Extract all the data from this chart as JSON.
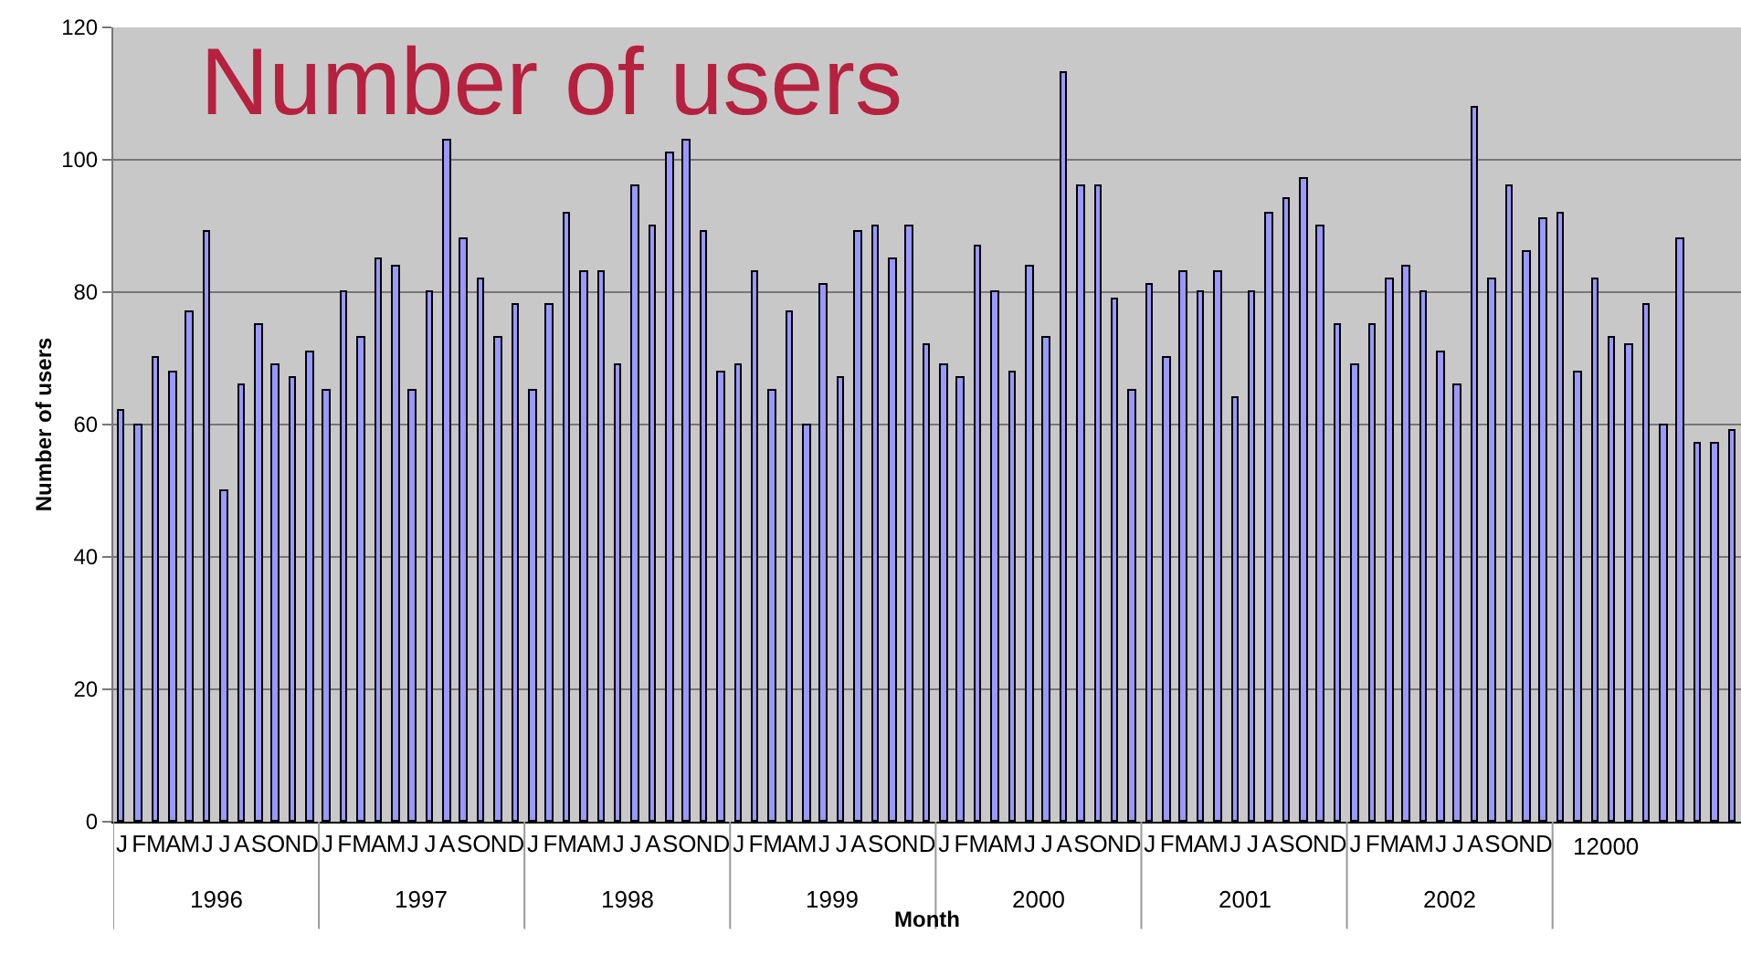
{
  "chart_data": {
    "type": "bar",
    "title": "Number of users",
    "xlabel": "Month",
    "ylabel": "Number of users",
    "categories": [
      "J",
      "F",
      "M",
      "A",
      "M",
      "J",
      "J",
      "A",
      "S",
      "O",
      "N",
      "D",
      "J",
      "F",
      "M",
      "A",
      "M",
      "J",
      "J",
      "A",
      "S",
      "O",
      "N",
      "D",
      "J",
      "F",
      "M",
      "A",
      "M",
      "J",
      "J",
      "A",
      "S",
      "O",
      "N",
      "D",
      "J",
      "F",
      "M",
      "A",
      "M",
      "J",
      "J",
      "A",
      "S",
      "O",
      "N",
      "D",
      "J",
      "F",
      "M",
      "A",
      "M",
      "J",
      "J",
      "A",
      "S",
      "O",
      "N",
      "D",
      "J",
      "F",
      "M",
      "A",
      "M",
      "J",
      "J",
      "A",
      "S",
      "O",
      "N",
      "D",
      "J",
      "F",
      "M",
      "A",
      "M",
      "J",
      "J",
      "A",
      "S",
      "O",
      "N",
      "D",
      null,
      null,
      null,
      null,
      null,
      null,
      null,
      null,
      null,
      null,
      null
    ],
    "values": [
      62,
      60,
      70,
      68,
      77,
      89,
      50,
      66,
      75,
      69,
      67,
      71,
      65,
      80,
      73,
      85,
      84,
      65,
      80,
      103,
      88,
      82,
      73,
      78,
      65,
      78,
      92,
      83,
      83,
      69,
      96,
      90,
      101,
      103,
      89,
      68,
      69,
      83,
      65,
      77,
      60,
      81,
      67,
      89,
      90,
      85,
      90,
      72,
      69,
      67,
      87,
      80,
      68,
      84,
      73,
      113,
      96,
      96,
      79,
      65,
      81,
      70,
      83,
      80,
      83,
      64,
      80,
      92,
      94,
      97,
      90,
      75,
      69,
      75,
      82,
      84,
      80,
      71,
      66,
      108,
      82,
      96,
      86,
      91,
      92,
      68,
      82,
      73,
      72,
      78,
      60,
      88,
      57,
      57,
      59
    ],
    "color": "#9999ff",
    "ylim": [
      0,
      120
    ],
    "yticks": [
      0,
      20,
      40,
      60,
      80,
      100,
      120
    ],
    "grid": "y",
    "annotations": [
      "1996",
      "1997",
      "1998",
      "1999",
      "2000",
      "2001",
      "2002",
      "12000"
    ]
  }
}
